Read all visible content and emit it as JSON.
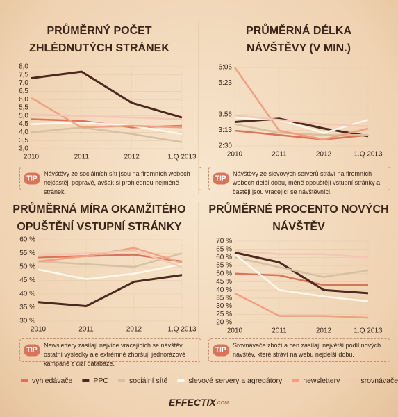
{
  "chart_data": [
    {
      "type": "line",
      "title": [
        "PRŮMĚRNÝ POČET",
        "ZHLÉDNUTÝCH STRÁNEK"
      ],
      "categories": [
        "2010",
        "2011",
        "2012",
        "1.Q 2013"
      ],
      "ylim": [
        3.0,
        8.0
      ],
      "yticks": [
        {
          "value": 3.0,
          "label": "3,0"
        },
        {
          "value": 3.5,
          "label": "3,5"
        },
        {
          "value": 4.0,
          "label": "4,0"
        },
        {
          "value": 4.5,
          "label": "4,5"
        },
        {
          "value": 5.0,
          "label": "5,0"
        },
        {
          "value": 5.5,
          "label": "5,5"
        },
        {
          "value": 6.0,
          "label": "6,0"
        },
        {
          "value": 6.5,
          "label": "6,5"
        },
        {
          "value": 7.0,
          "label": "7,0"
        },
        {
          "value": 7.5,
          "label": "7,5"
        },
        {
          "value": 8.0,
          "label": "8,0"
        }
      ],
      "grid": true,
      "series": [
        {
          "name": "vyhledávače",
          "color": "#d9735a",
          "values": [
            4.8,
            4.7,
            4.3,
            4.4
          ]
        },
        {
          "name": "PPC",
          "color": "#4a2a1e",
          "values": [
            7.3,
            7.7,
            5.8,
            4.9
          ]
        },
        {
          "name": "sociální sítě",
          "color": "#d6c0a2",
          "values": [
            4.0,
            4.3,
            3.9,
            3.4
          ]
        },
        {
          "name": "slevové servery a agregátory",
          "color": "#fff8ec",
          "values": [
            4.5,
            4.6,
            4.4,
            3.9
          ]
        },
        {
          "name": "newslettery",
          "color": "#f0a080",
          "values": [
            6.1,
            4.3,
            4.4,
            4.3
          ]
        },
        {
          "name": "srovnávače zboží a cen",
          "color": "#f6c6b4",
          "values": [
            5.1,
            5.0,
            4.9,
            4.8
          ]
        }
      ],
      "tip": {
        "label": "TIP",
        "text": "Návštěvy ze sociálních sítí jsou na firemních webech nejčastěji popravé, avšak si prohlédnou nejméně stránek."
      }
    },
    {
      "type": "line",
      "title": [
        "PRŮMĚRNÁ DÉLKA",
        "NÁVŠTĚVY (V MIN.)"
      ],
      "categories": [
        "2010",
        "2011",
        "2012",
        "1.Q 2013"
      ],
      "ylim": [
        2.5,
        6.1
      ],
      "yticks": [
        {
          "value": 2.5,
          "label": "2:30"
        },
        {
          "value": 3.217,
          "label": "3:13"
        },
        {
          "value": 3.933,
          "label": "3:56"
        },
        {
          "value": 5.383,
          "label": "5:23"
        },
        {
          "value": 6.1,
          "label": "6:06"
        }
      ],
      "grid": true,
      "series": [
        {
          "name": "vyhledávače",
          "color": "#d9735a",
          "values": [
            3.2,
            3.0,
            2.8,
            3.0
          ]
        },
        {
          "name": "PPC",
          "color": "#4a2a1e",
          "values": [
            3.6,
            3.75,
            3.3,
            2.95
          ]
        },
        {
          "name": "sociální sítě",
          "color": "#d6c0a2",
          "values": [
            3.5,
            3.1,
            3.0,
            3.0
          ]
        },
        {
          "name": "slevové servery a agregátory",
          "color": "#fff8ec",
          "values": [
            3.8,
            3.7,
            3.1,
            3.7
          ]
        },
        {
          "name": "newslettery",
          "color": "#f0a080",
          "values": [
            6.1,
            3.2,
            2.8,
            3.3
          ]
        },
        {
          "name": "srovnávače zboží a cen",
          "color": "#f6c6b4",
          "values": [
            3.9,
            3.7,
            3.5,
            3.4
          ]
        }
      ],
      "tip": {
        "label": "TIP",
        "text": "Návštěvy ze slevových serverů stráví na firemních webech delší dobu, méně opouštějí vstupní stránky a častěji jsou vracející se návštěvníci."
      }
    },
    {
      "type": "line",
      "title": [
        "PRŮMĚRNÁ MÍRA OKAMŽITÉHO",
        "OPUŠTĚNÍ VSTUPNÍ STRÁNKY"
      ],
      "categories": [
        "2010",
        "2011",
        "2012",
        "1.Q 2013"
      ],
      "ylim": [
        30,
        60
      ],
      "yticks": [
        {
          "value": 30,
          "label": "30 %"
        },
        {
          "value": 35,
          "label": "35 %"
        },
        {
          "value": 40,
          "label": "40 %"
        },
        {
          "value": 45,
          "label": "45 %"
        },
        {
          "value": 50,
          "label": "50 %"
        },
        {
          "value": 55,
          "label": "55 %"
        },
        {
          "value": 60,
          "label": "60 %"
        }
      ],
      "grid": true,
      "series": [
        {
          "name": "vyhledávače",
          "color": "#d9735a",
          "values": [
            53.5,
            54,
            54.5,
            52
          ]
        },
        {
          "name": "PPC",
          "color": "#4a2a1e",
          "values": [
            37,
            35.5,
            44.5,
            47
          ]
        },
        {
          "name": "sociální sítě",
          "color": "#d6c0a2",
          "values": [
            52,
            51,
            50,
            55
          ]
        },
        {
          "name": "slevové servery a agregátory",
          "color": "#fff8ec",
          "values": [
            49,
            45.5,
            47.5,
            51
          ]
        },
        {
          "name": "newslettery",
          "color": "#f0a080",
          "values": [
            52,
            54,
            57,
            51.5
          ]
        },
        {
          "name": "srovnávače zboží a cen",
          "color": "#f6c6b4",
          "values": [
            54,
            55,
            56,
            50
          ]
        }
      ],
      "tip": {
        "label": "TIP",
        "text": "Newslettery zasílají nejvíce vracejících se návštěv, ostatní výsledky ale extrémně zhoršují jednorázové kampaně z cizí databáze."
      }
    },
    {
      "type": "line",
      "title": [
        "PRŮMĚRNÉ PROCENTO NOVÝCH",
        "NÁVŠTĚV"
      ],
      "categories": [
        "2010",
        "2011",
        "2012",
        "1.Q 2013"
      ],
      "ylim": [
        20,
        70
      ],
      "yticks": [
        {
          "value": 20,
          "label": "20 %"
        },
        {
          "value": 25,
          "label": "25 %"
        },
        {
          "value": 30,
          "label": "30 %"
        },
        {
          "value": 35,
          "label": "35 %"
        },
        {
          "value": 40,
          "label": "40 %"
        },
        {
          "value": 45,
          "label": "45 %"
        },
        {
          "value": 50,
          "label": "50 %"
        },
        {
          "value": 55,
          "label": "55 %"
        },
        {
          "value": 60,
          "label": "60 %"
        },
        {
          "value": 65,
          "label": "65 %"
        },
        {
          "value": 70,
          "label": "70 %"
        }
      ],
      "grid": true,
      "series": [
        {
          "name": "vyhledávače",
          "color": "#d9735a",
          "values": [
            50,
            49,
            43,
            43
          ]
        },
        {
          "name": "PPC",
          "color": "#4a2a1e",
          "values": [
            63,
            57,
            40,
            38
          ]
        },
        {
          "name": "sociální sítě",
          "color": "#d6c0a2",
          "values": [
            60,
            54,
            48,
            52
          ]
        },
        {
          "name": "slevové servery a agregátory",
          "color": "#fff8ec",
          "values": [
            62,
            40,
            36,
            33
          ]
        },
        {
          "name": "newslettery",
          "color": "#f0a080",
          "values": [
            38,
            24,
            24,
            23
          ]
        },
        {
          "name": "srovnávače zboží a cen",
          "color": "#f6c6b4",
          "values": [
            64,
            62,
            62,
            60
          ]
        }
      ],
      "tip": {
        "label": "TIP",
        "text": "Srovnávače zboží a cen zasílají největší podíl nových návštěv, které stráví na webu nejdelší dobu."
      }
    }
  ],
  "footer": {
    "logo": "EFFECTIX",
    "domain": ".COM"
  }
}
